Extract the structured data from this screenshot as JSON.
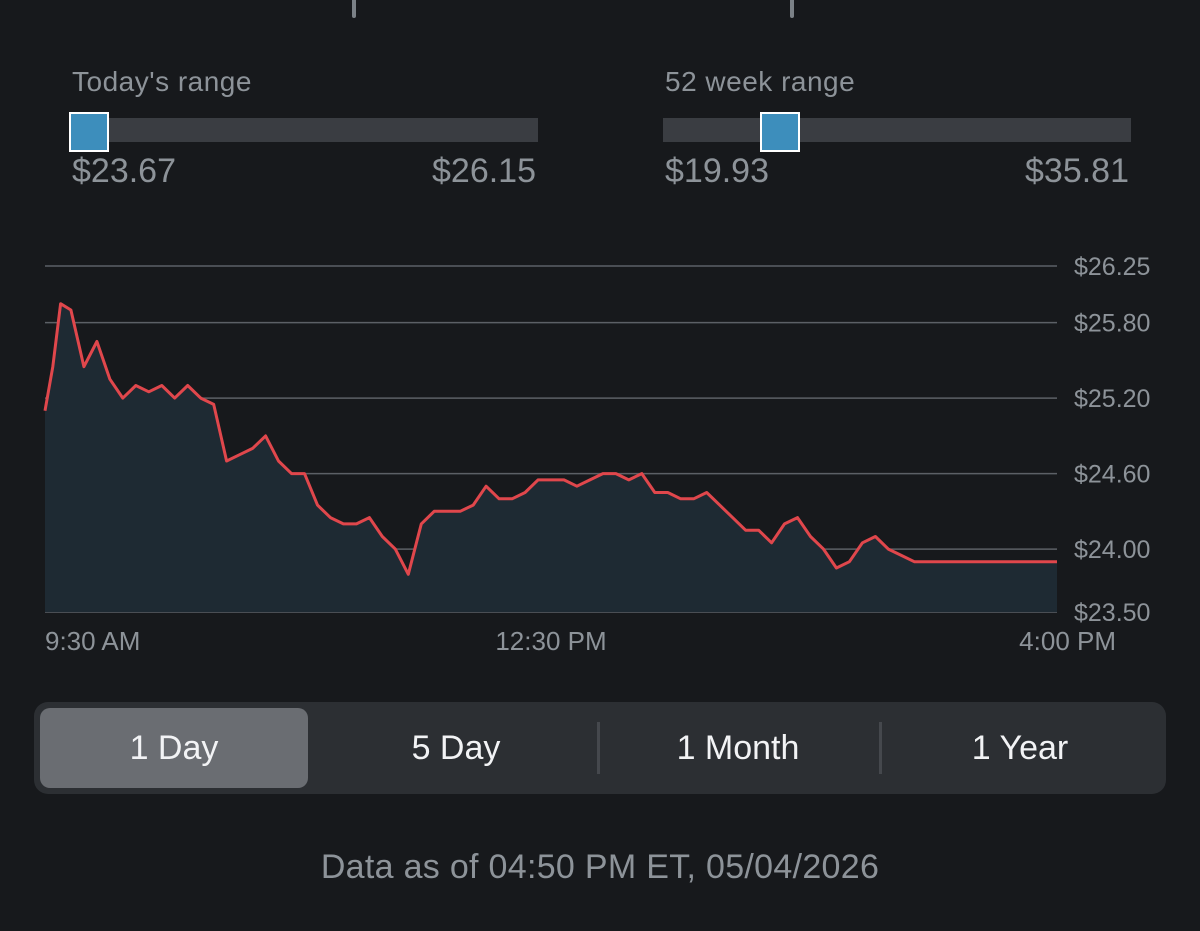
{
  "todays_range": {
    "label": "Today's range",
    "low": "$23.67",
    "high": "$26.15",
    "position": 0.04
  },
  "week52_range": {
    "label": "52 week range",
    "low": "$19.93",
    "high": "$35.81",
    "position": 0.25
  },
  "chart_data": {
    "type": "area",
    "line_color": "#e0474c",
    "fill_color": "#1e2a33",
    "ylim": [
      23.5,
      26.25
    ],
    "y_ticks": [
      {
        "value": 26.25,
        "label": "$26.25"
      },
      {
        "value": 25.8,
        "label": "$25.80"
      },
      {
        "value": 25.2,
        "label": "$25.20"
      },
      {
        "value": 24.6,
        "label": "$24.60"
      },
      {
        "value": 24.0,
        "label": "$24.00"
      },
      {
        "value": 23.5,
        "label": "$23.50"
      }
    ],
    "x_ticks": [
      "9:30 AM",
      "12:30 PM",
      "4:00 PM"
    ],
    "series": [
      {
        "x": [
          "9:30",
          "9:33",
          "9:36",
          "9:40",
          "9:45",
          "9:50",
          "9:55",
          "10:00",
          "10:05",
          "10:10",
          "10:15",
          "10:20",
          "10:25",
          "10:30",
          "10:35",
          "10:40",
          "10:45",
          "10:50",
          "10:55",
          "11:00",
          "11:05",
          "11:10",
          "11:15",
          "11:20",
          "11:25",
          "11:30",
          "11:35",
          "11:40",
          "11:45",
          "11:50",
          "11:55",
          "12:00",
          "12:05",
          "12:10",
          "12:15",
          "12:20",
          "12:25",
          "12:30",
          "12:35",
          "12:40",
          "12:45",
          "12:50",
          "12:55",
          "13:00",
          "13:05",
          "13:10",
          "13:15",
          "13:20",
          "13:25",
          "13:30",
          "13:35",
          "13:40",
          "13:45",
          "13:50",
          "13:55",
          "14:00",
          "14:05",
          "14:10",
          "14:15",
          "14:20",
          "14:25",
          "14:30",
          "14:35",
          "14:40",
          "14:45",
          "14:50",
          "14:55",
          "15:00",
          "15:05",
          "15:10",
          "15:15",
          "15:20",
          "15:25",
          "15:30",
          "15:35",
          "15:40",
          "15:45",
          "15:50",
          "15:55",
          "16:00"
        ],
        "values": [
          25.1,
          25.45,
          25.95,
          25.9,
          25.45,
          25.65,
          25.35,
          25.2,
          25.3,
          25.25,
          25.3,
          25.2,
          25.3,
          25.2,
          25.15,
          24.7,
          24.75,
          24.8,
          24.9,
          24.7,
          24.6,
          24.6,
          24.35,
          24.25,
          24.2,
          24.2,
          24.25,
          24.1,
          24.0,
          23.8,
          24.2,
          24.3,
          24.3,
          24.3,
          24.35,
          24.5,
          24.4,
          24.4,
          24.45,
          24.55,
          24.55,
          24.55,
          24.5,
          24.55,
          24.6,
          24.6,
          24.55,
          24.6,
          24.45,
          24.45,
          24.4,
          24.4,
          24.45,
          24.35,
          24.25,
          24.15,
          24.15,
          24.05,
          24.2,
          24.25,
          24.1,
          24.0,
          23.85,
          23.9,
          24.05,
          24.1,
          24.0,
          23.95,
          23.9,
          23.9,
          23.9,
          23.9,
          23.9,
          23.9,
          23.9,
          23.9,
          23.9,
          23.9,
          23.9,
          23.9
        ]
      }
    ]
  },
  "periods": [
    {
      "label": "1 Day",
      "active": true
    },
    {
      "label": "5 Day",
      "active": false
    },
    {
      "label": "1 Month",
      "active": false
    },
    {
      "label": "1 Year",
      "active": false
    }
  ],
  "footer": {
    "text": "Data as of 04:50 PM ET, 05/04/2026"
  }
}
